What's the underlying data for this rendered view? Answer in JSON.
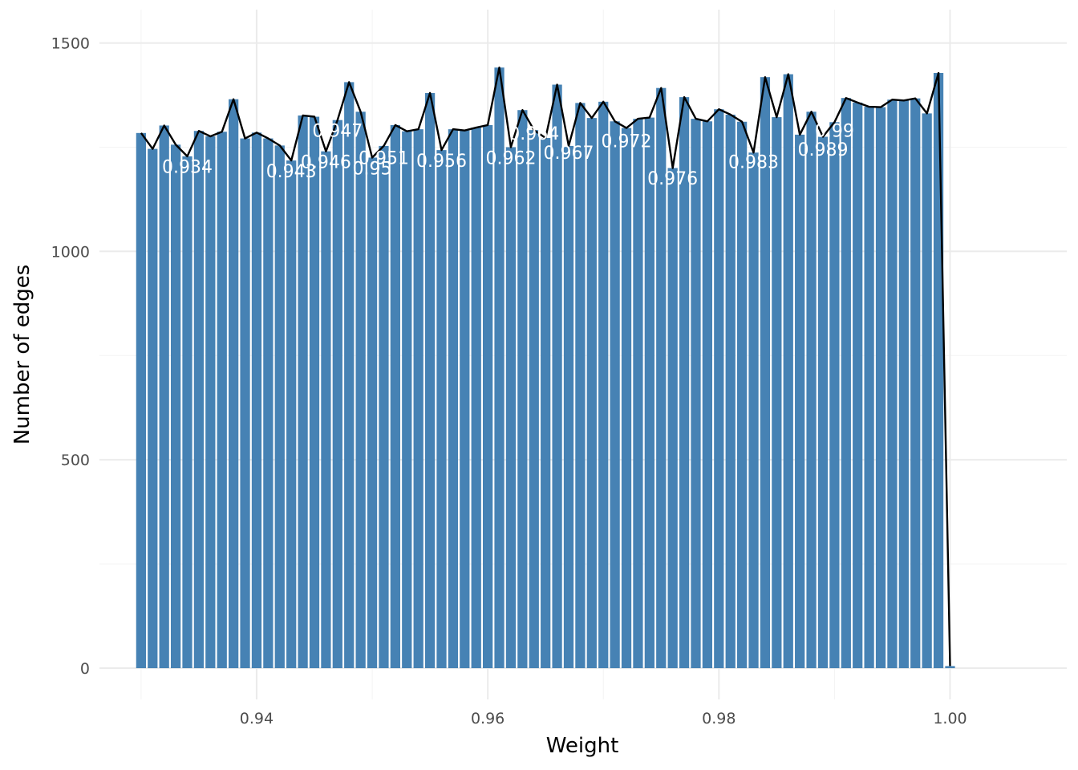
{
  "chart_data": {
    "type": "bar",
    "xlabel": "Weight",
    "ylabel": "Number of edges",
    "xlim": [
      0.9264,
      1.0101
    ],
    "ylim": [
      -75,
      1580
    ],
    "x_ticks": [
      0.94,
      0.96,
      0.98,
      1.0
    ],
    "x_tick_labels": [
      "0.94",
      "0.96",
      "0.98",
      "1.00"
    ],
    "y_ticks": [
      0,
      500,
      1000,
      1500
    ],
    "y_tick_labels": [
      "0",
      "500",
      "1000",
      "1500"
    ],
    "grid": true,
    "legend": "none",
    "bar_width": 0.00085,
    "colors": {
      "bar": "#4682b4",
      "line": "#000000",
      "label": "#ffffff"
    },
    "series": [
      {
        "type": "bar",
        "x": [
          0.93,
          0.931,
          0.932,
          0.933,
          0.934,
          0.935,
          0.936,
          0.937,
          0.938,
          0.939,
          0.94,
          0.941,
          0.942,
          0.943,
          0.944,
          0.945,
          0.946,
          0.947,
          0.948,
          0.949,
          0.95,
          0.951,
          0.952,
          0.953,
          0.954,
          0.955,
          0.956,
          0.957,
          0.958,
          0.959,
          0.96,
          0.961,
          0.962,
          0.963,
          0.964,
          0.965,
          0.966,
          0.967,
          0.968,
          0.969,
          0.97,
          0.971,
          0.972,
          0.973,
          0.974,
          0.975,
          0.976,
          0.977,
          0.978,
          0.979,
          0.98,
          0.981,
          0.982,
          0.983,
          0.984,
          0.985,
          0.986,
          0.987,
          0.988,
          0.989,
          0.99,
          0.991,
          0.992,
          0.993,
          0.994,
          0.995,
          0.996,
          0.997,
          0.998,
          0.999,
          1.0
        ],
        "values": [
          1284,
          1246,
          1302,
          1256,
          1228,
          1289,
          1276,
          1287,
          1365,
          1271,
          1285,
          1271,
          1254,
          1218,
          1326,
          1323,
          1240,
          1315,
          1406,
          1335,
          1225,
          1253,
          1303,
          1288,
          1293,
          1380,
          1243,
          1293,
          1290,
          1297,
          1303,
          1441,
          1250,
          1339,
          1291,
          1272,
          1400,
          1253,
          1356,
          1320,
          1359,
          1312,
          1296,
          1318,
          1321,
          1392,
          1200,
          1370,
          1318,
          1312,
          1341,
          1328,
          1311,
          1237,
          1418,
          1322,
          1425,
          1280,
          1335,
          1275,
          1310,
          1368,
          1357,
          1347,
          1346,
          1364,
          1362,
          1367,
          1331,
          1428,
          5
        ]
      },
      {
        "type": "line",
        "x": [
          0.93,
          0.931,
          0.932,
          0.933,
          0.934,
          0.935,
          0.936,
          0.937,
          0.938,
          0.939,
          0.94,
          0.941,
          0.942,
          0.943,
          0.944,
          0.945,
          0.946,
          0.947,
          0.948,
          0.949,
          0.95,
          0.951,
          0.952,
          0.953,
          0.954,
          0.955,
          0.956,
          0.957,
          0.958,
          0.959,
          0.96,
          0.961,
          0.962,
          0.963,
          0.964,
          0.965,
          0.966,
          0.967,
          0.968,
          0.969,
          0.97,
          0.971,
          0.972,
          0.973,
          0.974,
          0.975,
          0.976,
          0.977,
          0.978,
          0.979,
          0.98,
          0.981,
          0.982,
          0.983,
          0.984,
          0.985,
          0.986,
          0.987,
          0.988,
          0.989,
          0.99,
          0.991,
          0.992,
          0.993,
          0.994,
          0.995,
          0.996,
          0.997,
          0.998,
          0.999,
          1.0
        ],
        "values": [
          1284,
          1246,
          1302,
          1256,
          1228,
          1289,
          1276,
          1287,
          1365,
          1271,
          1285,
          1271,
          1254,
          1218,
          1326,
          1323,
          1240,
          1315,
          1406,
          1335,
          1225,
          1253,
          1303,
          1288,
          1293,
          1380,
          1243,
          1293,
          1290,
          1297,
          1303,
          1441,
          1250,
          1339,
          1291,
          1272,
          1400,
          1253,
          1356,
          1320,
          1359,
          1312,
          1296,
          1318,
          1321,
          1392,
          1200,
          1370,
          1318,
          1312,
          1341,
          1328,
          1311,
          1237,
          1418,
          1322,
          1425,
          1280,
          1335,
          1275,
          1310,
          1368,
          1357,
          1347,
          1346,
          1364,
          1362,
          1367,
          1331,
          1428,
          5
        ]
      }
    ],
    "annotations": [
      {
        "text": "0.934",
        "x": 0.934,
        "y": 1188
      },
      {
        "text": "0.943",
        "x": 0.943,
        "y": 1178
      },
      {
        "text": "0.946",
        "x": 0.946,
        "y": 1200
      },
      {
        "text": "0.947",
        "x": 0.947,
        "y": 1275
      },
      {
        "text": "0.95",
        "x": 0.95,
        "y": 1185
      },
      {
        "text": "0.951",
        "x": 0.951,
        "y": 1210
      },
      {
        "text": "0.956",
        "x": 0.956,
        "y": 1203
      },
      {
        "text": "0.962",
        "x": 0.962,
        "y": 1210
      },
      {
        "text": "0.964",
        "x": 0.964,
        "y": 1268
      },
      {
        "text": "0.967",
        "x": 0.967,
        "y": 1222
      },
      {
        "text": "0.972",
        "x": 0.972,
        "y": 1250
      },
      {
        "text": "0.976",
        "x": 0.976,
        "y": 1160
      },
      {
        "text": "0.983",
        "x": 0.983,
        "y": 1200
      },
      {
        "text": "0.989",
        "x": 0.989,
        "y": 1230
      },
      {
        "text": "0.99",
        "x": 0.99,
        "y": 1275
      }
    ]
  }
}
